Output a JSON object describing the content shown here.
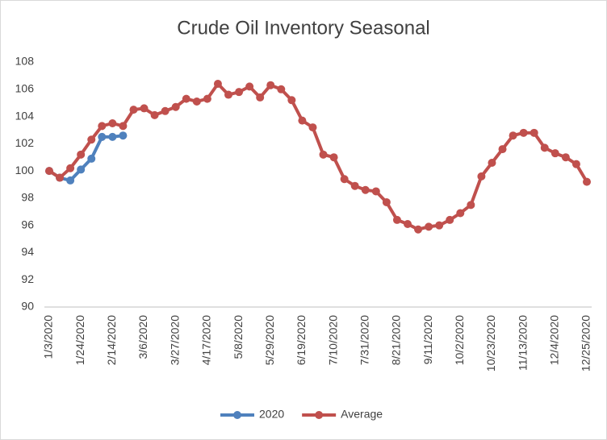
{
  "chart_data": {
    "type": "line",
    "title": "Crude Oil Inventory Seasonal",
    "categories": [
      "1/3/2020",
      null,
      null,
      "1/24/2020",
      null,
      null,
      "2/14/2020",
      null,
      null,
      "3/6/2020",
      null,
      null,
      "3/27/2020",
      null,
      null,
      "4/17/2020",
      null,
      null,
      "5/8/2020",
      null,
      null,
      "5/29/2020",
      null,
      null,
      "6/19/2020",
      null,
      null,
      "7/10/2020",
      null,
      null,
      "7/31/2020",
      null,
      null,
      "8/21/2020",
      null,
      null,
      "9/11/2020",
      null,
      null,
      "10/2/2020",
      null,
      null,
      "10/23/2020",
      null,
      null,
      "11/13/2020",
      null,
      null,
      "12/4/2020",
      null,
      null,
      "12/25/2020"
    ],
    "series": [
      {
        "name": "2020",
        "color": "#4f81bd",
        "values": [
          100.0,
          99.5,
          99.3,
          100.1,
          100.9,
          102.5,
          102.5,
          102.6,
          null,
          null,
          null,
          null,
          null,
          null,
          null,
          null,
          null,
          null,
          null,
          null,
          null,
          null,
          null,
          null,
          null,
          null,
          null,
          null,
          null,
          null,
          null,
          null,
          null,
          null,
          null,
          null,
          null,
          null,
          null,
          null,
          null,
          null,
          null,
          null,
          null,
          null,
          null,
          null,
          null,
          null,
          null,
          null
        ]
      },
      {
        "name": "Average",
        "color": "#c0504d",
        "values": [
          100.0,
          99.5,
          100.2,
          101.2,
          102.3,
          103.3,
          103.5,
          103.3,
          104.5,
          104.6,
          104.1,
          104.4,
          104.7,
          105.3,
          105.1,
          105.3,
          106.4,
          105.6,
          105.8,
          106.2,
          105.4,
          106.3,
          106.0,
          105.2,
          103.7,
          103.2,
          101.2,
          101.0,
          99.4,
          98.9,
          98.6,
          98.5,
          97.7,
          96.4,
          96.1,
          95.7,
          95.9,
          96.0,
          96.4,
          96.9,
          97.5,
          99.6,
          100.6,
          101.6,
          102.6,
          102.8,
          102.8,
          101.7,
          101.3,
          101.0,
          100.5,
          99.2
        ]
      }
    ],
    "ylim": [
      90,
      108
    ],
    "yticks": [
      90,
      92,
      94,
      96,
      98,
      100,
      102,
      104,
      106,
      108
    ],
    "grid": false,
    "legend": "bottom"
  }
}
